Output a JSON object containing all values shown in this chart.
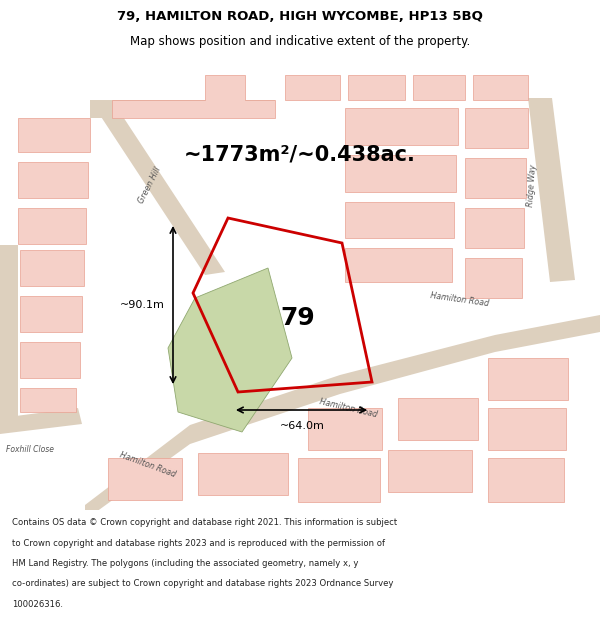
{
  "title_line1": "79, HAMILTON ROAD, HIGH WYCOMBE, HP13 5BQ",
  "title_line2": "Map shows position and indicative extent of the property.",
  "area_text": "~1773m²/~0.438ac.",
  "label_79": "79",
  "dim_width": "~64.0m",
  "dim_height": "~90.1m",
  "footer_lines": [
    "Contains OS data © Crown copyright and database right 2021. This information is subject",
    "to Crown copyright and database rights 2023 and is reproduced with the permission of",
    "HM Land Registry. The polygons (including the associated geometry, namely x, y",
    "co-ordinates) are subject to Crown copyright and database rights 2023 Ordnance Survey",
    "100026316."
  ],
  "map_bg": "#f2ede8",
  "road_color": "#ddd0be",
  "plot_line_color": "#cc0000",
  "bldg_color": "#f5d0c8",
  "bldg_edge": "#e8a090",
  "green_fill": "#c8d8a8",
  "green_edge": "#90a870",
  "white_bg": "#ffffff",
  "footer_bg": "#ede8e2",
  "text_color": "#222222",
  "road_label_color": "#555555"
}
